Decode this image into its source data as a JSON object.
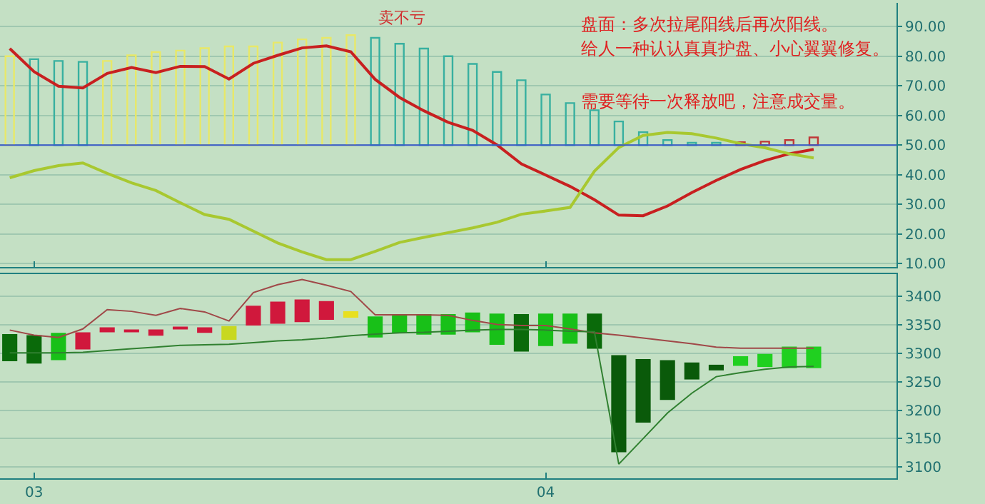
{
  "chart_data": [
    {
      "type": "bar",
      "tick_labels": "y",
      "categories": [
        null,
        "03",
        null,
        null,
        null,
        null,
        null,
        null,
        null,
        null,
        null,
        null,
        null,
        null,
        null,
        null,
        null,
        null,
        null,
        null,
        null,
        null,
        "04",
        null,
        null,
        null,
        null,
        null,
        null,
        null,
        null,
        null,
        null,
        null
      ],
      "ylim": [
        9,
        98
      ],
      "yticks": [
        {
          "value": 10,
          "label": "10.00"
        },
        {
          "value": 20,
          "label": "20.00"
        },
        {
          "value": 30,
          "label": "30.00"
        },
        {
          "value": 40,
          "label": "40.00"
        },
        {
          "value": 50,
          "label": "50.00"
        },
        {
          "value": 60,
          "label": "60.00"
        },
        {
          "value": 70,
          "label": "70.00"
        },
        {
          "value": 80,
          "label": "80.00"
        },
        {
          "value": 90,
          "label": "90.00"
        }
      ],
      "grid": "y",
      "series": [
        {
          "base": [
            50,
            50,
            50,
            50,
            50,
            50,
            50,
            50,
            50,
            50,
            50,
            50,
            50,
            50,
            50,
            50,
            50,
            50,
            50,
            50,
            50,
            50,
            50,
            50,
            50,
            50,
            50,
            50,
            50,
            50,
            50,
            50,
            50,
            50
          ],
          "values": [
            30.0,
            29.0,
            28.4,
            28.1,
            28.4,
            30.3,
            31.4,
            31.9,
            32.7,
            33.3,
            33.3,
            34.6,
            35.7,
            36.2,
            37.1,
            36.2,
            34.2,
            32.6,
            30.0,
            27.4,
            24.7,
            21.9,
            17.1,
            14.2,
            11.8,
            8.0,
            4.4,
            1.7,
            0.8,
            0.8,
            1.0,
            1.2,
            1.7,
            2.6
          ],
          "colors": [
            "#e8e868",
            "#38b0a0",
            "#38b0a0",
            "#38b0a0",
            "#e8e868",
            "#e8e868",
            "#e8e868",
            "#e8e868",
            "#e8e868",
            "#e8e868",
            "#e8e868",
            "#e8e868",
            "#e8e868",
            "#e8e868",
            "#e8e868",
            "#38b0a0",
            "#38b0a0",
            "#38b0a0",
            "#38b0a0",
            "#38b0a0",
            "#38b0a0",
            "#38b0a0",
            "#38b0a0",
            "#38b0a0",
            "#38b0a0",
            "#38b0a0",
            "#38b0a0",
            "#38b0a0",
            "#38b0a0",
            "#38b0a0",
            "#c03838",
            "#c03838",
            "#c03838",
            "#c03838"
          ]
        },
        {
          "type": "line",
          "color": "#c82020",
          "values": [
            82.6,
            74.8,
            69.9,
            69.3,
            74.2,
            76.2,
            74.5,
            76.6,
            76.5,
            72.3,
            77.6,
            80.3,
            82.8,
            83.5,
            81.5,
            72.2,
            66.1,
            61.6,
            57.7,
            55.0,
            50.1,
            43.7,
            39.9,
            36.1,
            31.6,
            26.4,
            26.2,
            29.5,
            34.0,
            38.1,
            41.8,
            44.8,
            47.1,
            48.6
          ]
        },
        {
          "type": "line",
          "color": "#a8c830",
          "values": [
            39.0,
            41.4,
            43.1,
            44.0,
            40.5,
            37.3,
            34.7,
            30.6,
            26.6,
            25.0,
            21.0,
            17.0,
            14.0,
            11.4,
            11.4,
            14.2,
            17.2,
            18.9,
            20.5,
            22.1,
            24.0,
            26.7,
            27.8,
            29.0,
            41.2,
            49.2,
            53.3,
            54.3,
            53.9,
            52.4,
            50.5,
            49.1,
            47.1,
            45.7
          ]
        }
      ],
      "ref_lines": [
        {
          "axis": "y",
          "value": 50,
          "color": "#3858c8"
        }
      ],
      "annotations": [
        "卖不亏",
        "盘面：多次拉尾阳线后再次阳线。",
        "给人一种认认真真护盘、小心翼翼修复。",
        "需要等待一次释放吧，注意成交量。"
      ]
    },
    {
      "type": "bar",
      "categories": [
        null,
        "03",
        null,
        null,
        null,
        null,
        null,
        null,
        null,
        null,
        null,
        null,
        null,
        null,
        null,
        null,
        null,
        null,
        null,
        null,
        null,
        null,
        "04",
        null,
        null,
        null,
        null,
        null,
        null,
        null,
        null,
        null,
        null,
        null
      ],
      "ylim": [
        3080,
        3440
      ],
      "yticks": [
        3100,
        3150,
        3200,
        3250,
        3300,
        3350,
        3400
      ],
      "grid": "y",
      "series": [
        {
          "base": [
            3286,
            3282,
            3288,
            3307,
            3337,
            3337,
            3331,
            3343,
            3336,
            3324,
            3349,
            3352,
            3355,
            3359,
            3363,
            3328,
            3336,
            3333,
            3333,
            3337,
            3315,
            3303,
            3313,
            3317,
            3308,
            3126,
            3178,
            3218,
            3254,
            3270,
            3278,
            3276,
            3274,
            3274
          ],
          "values": [
            48,
            50,
            48,
            30,
            9,
            4,
            11,
            2,
            10,
            24,
            35,
            39,
            40,
            33,
            11,
            37,
            33,
            36,
            36,
            35,
            55,
            66,
            57,
            53,
            62,
            171,
            112,
            70,
            30,
            10,
            17,
            23,
            38,
            38
          ],
          "colors": [
            "#0a6a0a",
            "#0a6a0a",
            "#18c018",
            "#d0183c",
            "#d0183c",
            "#d0183c",
            "#d0183c",
            "#d0183c",
            "#d0183c",
            "#c8d820",
            "#d0183c",
            "#d0183c",
            "#d0183c",
            "#d0183c",
            "#e8e020",
            "#18c018",
            "#18c018",
            "#18c018",
            "#18c018",
            "#18c018",
            "#18c018",
            "#0a6a0a",
            "#18c018",
            "#18c018",
            "#0a6a0a",
            "#0a5a0a",
            "#0a5a0a",
            "#0a5a0a",
            "#0a5a0a",
            "#0a5a0a",
            "#20d020",
            "#20d020",
            "#20d020",
            "#20d020"
          ]
        },
        {
          "type": "line",
          "color": "#a04848",
          "values": [
            3341,
            3332,
            3328,
            3343,
            3377,
            3374,
            3367,
            3379,
            3373,
            3357,
            3407,
            3421,
            3430,
            3420,
            3409,
            3368,
            3368,
            3368,
            3367,
            3358,
            3351,
            3349,
            3349,
            3343,
            3336,
            3332,
            3327,
            3322,
            3317,
            3311,
            3309,
            3309,
            3309,
            3309
          ]
        },
        {
          "type": "line",
          "color": "#308030",
          "values": [
            3301,
            3301,
            3301,
            3302,
            3305,
            3308,
            3311,
            3314,
            3315,
            3316,
            3319,
            3322,
            3324,
            3327,
            3331,
            3334,
            3336,
            3337,
            3339,
            3341,
            3342,
            3342,
            3341,
            3339,
            3338,
            3105,
            3150,
            3195,
            3230,
            3259,
            3266,
            3272,
            3276,
            3277
          ]
        }
      ]
    }
  ]
}
